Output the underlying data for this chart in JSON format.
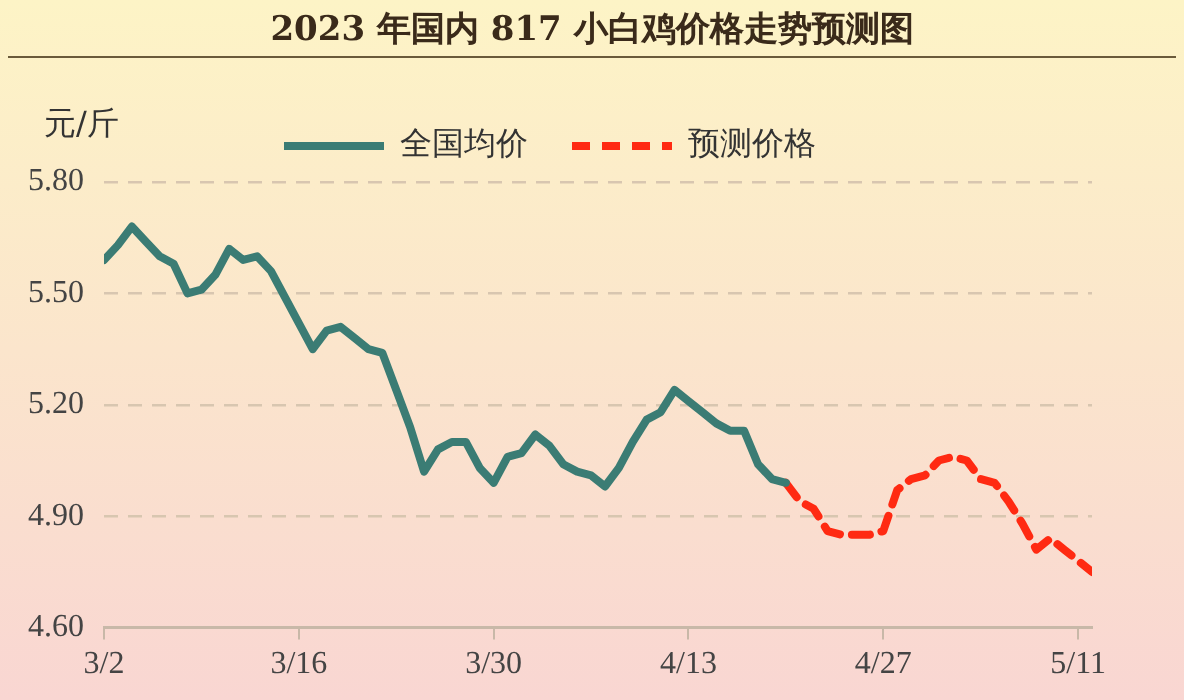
{
  "chart_data": {
    "type": "line",
    "title": "2023 年国内 817 小白鸡价格走势预测图",
    "ylabel": "元/斤",
    "series": [
      {
        "name": "全国均价",
        "color": "#3b7c74",
        "line_style": "solid",
        "x": [
          "2023-03-02",
          "2023-03-03",
          "2023-03-04",
          "2023-03-05",
          "2023-03-06",
          "2023-03-07",
          "2023-03-08",
          "2023-03-09",
          "2023-03-10",
          "2023-03-11",
          "2023-03-12",
          "2023-03-13",
          "2023-03-14",
          "2023-03-15",
          "2023-03-16",
          "2023-03-17",
          "2023-03-18",
          "2023-03-19",
          "2023-03-20",
          "2023-03-21",
          "2023-03-22",
          "2023-03-23",
          "2023-03-24",
          "2023-03-25",
          "2023-03-26",
          "2023-03-27",
          "2023-03-28",
          "2023-03-29",
          "2023-03-30",
          "2023-03-31",
          "2023-04-01",
          "2023-04-02",
          "2023-04-03",
          "2023-04-04",
          "2023-04-05",
          "2023-04-06",
          "2023-04-07",
          "2023-04-08",
          "2023-04-09",
          "2023-04-10",
          "2023-04-11",
          "2023-04-12",
          "2023-04-13",
          "2023-04-14",
          "2023-04-15",
          "2023-04-16",
          "2023-04-17",
          "2023-04-18",
          "2023-04-19",
          "2023-04-20"
        ],
        "values": [
          5.59,
          5.63,
          5.68,
          5.64,
          5.6,
          5.58,
          5.5,
          5.51,
          5.55,
          5.62,
          5.59,
          5.6,
          5.56,
          5.49,
          5.42,
          5.35,
          5.4,
          5.41,
          5.38,
          5.35,
          5.34,
          5.24,
          5.14,
          5.02,
          5.08,
          5.1,
          5.1,
          5.03,
          4.99,
          5.06,
          5.07,
          5.12,
          5.09,
          5.04,
          5.02,
          5.01,
          4.98,
          5.03,
          5.1,
          5.16,
          5.18,
          5.24,
          5.21,
          5.18,
          5.15,
          5.13,
          5.13,
          5.04,
          5.0,
          4.99
        ]
      },
      {
        "name": "预测价格",
        "color": "#ff2a12",
        "line_style": "dashed",
        "x": [
          "2023-04-20",
          "2023-04-21",
          "2023-04-22",
          "2023-04-23",
          "2023-04-24",
          "2023-04-25",
          "2023-04-26",
          "2023-04-27",
          "2023-04-28",
          "2023-04-29",
          "2023-04-30",
          "2023-05-01",
          "2023-05-02",
          "2023-05-03",
          "2023-05-04",
          "2023-05-05",
          "2023-05-06",
          "2023-05-07",
          "2023-05-08",
          "2023-05-09",
          "2023-05-10",
          "2023-05-11",
          "2023-05-12"
        ],
        "values": [
          4.99,
          4.94,
          4.92,
          4.86,
          4.85,
          4.85,
          4.85,
          4.86,
          4.97,
          5.0,
          5.01,
          5.05,
          5.06,
          5.05,
          5.0,
          4.99,
          4.94,
          4.88,
          4.81,
          4.84,
          4.81,
          4.78,
          4.75
        ]
      }
    ],
    "xlim": [
      "2023-03-02",
      "2023-05-12"
    ],
    "xticks": [
      {
        "value": "2023-03-02",
        "label": "3/2"
      },
      {
        "value": "2023-03-16",
        "label": "3/16"
      },
      {
        "value": "2023-03-30",
        "label": "3/30"
      },
      {
        "value": "2023-04-13",
        "label": "4/13"
      },
      {
        "value": "2023-04-27",
        "label": "4/27"
      },
      {
        "value": "2023-05-11",
        "label": "5/11"
      }
    ],
    "ylim": [
      4.6,
      5.8
    ],
    "yticks": [
      {
        "value": 4.6,
        "label": "4.60"
      },
      {
        "value": 4.9,
        "label": "4.90"
      },
      {
        "value": 5.2,
        "label": "5.20"
      },
      {
        "value": 5.5,
        "label": "5.50"
      },
      {
        "value": 5.8,
        "label": "5.80"
      }
    ],
    "grid": "y",
    "legend": "top",
    "marker": "none"
  }
}
